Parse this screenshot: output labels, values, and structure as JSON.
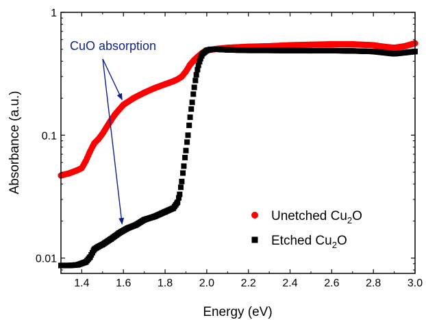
{
  "chart_data": {
    "type": "scatter",
    "title": "",
    "xlabel": "Energy (eV)",
    "ylabel": "Absorbance (a.u.)",
    "xlim": [
      1.3,
      3.0
    ],
    "ylim": [
      0.0075,
      1
    ],
    "yscale": "log",
    "xticks": [
      "1.4",
      "1.6",
      "1.8",
      "2.0",
      "2.2",
      "2.4",
      "2.6",
      "2.8",
      "3.0"
    ],
    "xtick_values": [
      1.4,
      1.6,
      1.8,
      2.0,
      2.2,
      2.4,
      2.6,
      2.8,
      3.0
    ],
    "yticks": [
      "0.01",
      "0.1",
      "1"
    ],
    "ytick_values": [
      0.01,
      0.1,
      1
    ],
    "grid": false,
    "legend_position": "bottom-right",
    "annotation": {
      "text": "CuO absorption",
      "color": "#0d1f8c",
      "targets": [
        [
          1.6,
          0.18
        ],
        [
          1.6,
          0.0175
        ]
      ]
    },
    "series": [
      {
        "name": "Unetched Cu",
        "name_sub": "2",
        "name_suffix": "O",
        "marker": "circle",
        "color": "#ff0000",
        "x": [
          1.3,
          1.34,
          1.38,
          1.4,
          1.42,
          1.44,
          1.46,
          1.48,
          1.5,
          1.52,
          1.54,
          1.56,
          1.58,
          1.6,
          1.65,
          1.7,
          1.75,
          1.8,
          1.84,
          1.86,
          1.88,
          1.9,
          1.92,
          1.94,
          1.96,
          1.98,
          2.0,
          2.05,
          2.1,
          2.2,
          2.3,
          2.4,
          2.5,
          2.6,
          2.7,
          2.8,
          2.85,
          2.9,
          2.95,
          3.0
        ],
        "y": [
          0.047,
          0.049,
          0.052,
          0.054,
          0.062,
          0.074,
          0.086,
          0.093,
          0.103,
          0.117,
          0.132,
          0.148,
          0.162,
          0.177,
          0.201,
          0.222,
          0.242,
          0.26,
          0.275,
          0.285,
          0.3,
          0.33,
          0.375,
          0.41,
          0.44,
          0.47,
          0.49,
          0.505,
          0.515,
          0.525,
          0.53,
          0.54,
          0.545,
          0.55,
          0.55,
          0.54,
          0.525,
          0.515,
          0.53,
          0.56
        ]
      },
      {
        "name": "Etched Cu",
        "name_sub": "2",
        "name_suffix": "O",
        "marker": "square",
        "color": "#000000",
        "x": [
          1.3,
          1.34,
          1.38,
          1.42,
          1.44,
          1.46,
          1.48,
          1.5,
          1.54,
          1.58,
          1.62,
          1.66,
          1.7,
          1.75,
          1.8,
          1.84,
          1.86,
          1.87,
          1.88,
          1.89,
          1.9,
          1.91,
          1.92,
          1.93,
          1.94,
          1.95,
          1.96,
          1.97,
          1.98,
          2.0,
          2.02,
          2.05,
          2.1,
          2.2,
          2.3,
          2.4,
          2.5,
          2.6,
          2.7,
          2.8,
          2.9,
          2.95,
          3.0
        ],
        "y": [
          0.0087,
          0.0087,
          0.0088,
          0.0093,
          0.0102,
          0.0118,
          0.0124,
          0.0129,
          0.0143,
          0.016,
          0.0175,
          0.0186,
          0.0205,
          0.0218,
          0.0238,
          0.0255,
          0.0285,
          0.033,
          0.042,
          0.056,
          0.075,
          0.1,
          0.14,
          0.185,
          0.245,
          0.31,
          0.37,
          0.42,
          0.46,
          0.49,
          0.5,
          0.5,
          0.495,
          0.49,
          0.49,
          0.488,
          0.487,
          0.488,
          0.485,
          0.48,
          0.46,
          0.47,
          0.48
        ]
      }
    ]
  }
}
